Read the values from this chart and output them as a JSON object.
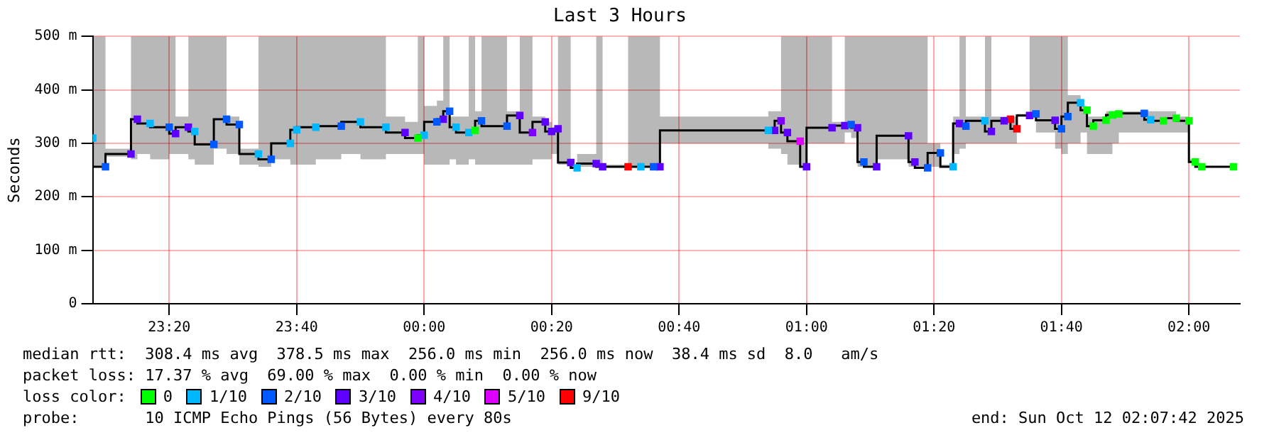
{
  "chart_data": {
    "type": "step",
    "title": "Last 3 Hours",
    "ylabel": "Seconds",
    "legend_title": "loss color:",
    "legend": "bottom",
    "grid": true,
    "xlim": [
      "2025-10-11T23:08",
      "2025-10-12T02:08"
    ],
    "xticks": [
      {
        "value": "2025-10-11T23:20",
        "label": "23:20"
      },
      {
        "value": "2025-10-11T23:40",
        "label": "23:40"
      },
      {
        "value": "2025-10-12T00:00",
        "label": "00:00"
      },
      {
        "value": "2025-10-12T00:20",
        "label": "00:20"
      },
      {
        "value": "2025-10-12T00:40",
        "label": "00:40"
      },
      {
        "value": "2025-10-12T01:00",
        "label": "01:00"
      },
      {
        "value": "2025-10-12T01:20",
        "label": "01:20"
      },
      {
        "value": "2025-10-12T01:40",
        "label": "01:40"
      },
      {
        "value": "2025-10-12T02:00",
        "label": "02:00"
      }
    ],
    "ylim": [
      0,
      500
    ],
    "yticks": [
      0,
      {
        "value": 100,
        "label": "100 m"
      },
      {
        "value": 200,
        "label": "200 m"
      },
      {
        "value": 300,
        "label": "300 m"
      },
      {
        "value": 400,
        "label": "400 m"
      },
      {
        "value": 500,
        "label": "500 m"
      }
    ],
    "x": [
      "2025-10-11T23:08",
      "2025-10-11T23:10",
      "2025-10-11T23:14",
      "2025-10-11T23:15",
      "2025-10-11T23:17",
      "2025-10-11T23:20",
      "2025-10-11T23:21",
      "2025-10-11T23:23",
      "2025-10-11T23:24",
      "2025-10-11T23:27",
      "2025-10-11T23:29",
      "2025-10-11T23:31",
      "2025-10-11T23:34",
      "2025-10-11T23:36",
      "2025-10-11T23:39",
      "2025-10-11T23:40",
      "2025-10-11T23:43",
      "2025-10-11T23:47",
      "2025-10-11T23:50",
      "2025-10-11T23:54",
      "2025-10-11T23:57",
      "2025-10-11T23:59",
      "2025-10-12T00:00",
      "2025-10-12T00:02",
      "2025-10-12T00:03",
      "2025-10-12T00:04",
      "2025-10-12T00:05",
      "2025-10-12T00:07",
      "2025-10-12T00:08",
      "2025-10-12T00:09",
      "2025-10-12T00:13",
      "2025-10-12T00:15",
      "2025-10-12T00:17",
      "2025-10-12T00:19",
      "2025-10-12T00:20",
      "2025-10-12T00:21",
      "2025-10-12T00:23",
      "2025-10-12T00:24",
      "2025-10-12T00:27",
      "2025-10-12T00:28",
      "2025-10-12T00:32",
      "2025-10-12T00:34",
      "2025-10-12T00:36",
      "2025-10-12T00:37",
      "2025-10-12T00:54",
      "2025-10-12T00:55",
      "2025-10-12T00:56",
      "2025-10-12T00:57",
      "2025-10-12T00:59",
      "2025-10-12T01:00",
      "2025-10-12T01:04",
      "2025-10-12T01:06",
      "2025-10-12T01:07",
      "2025-10-12T01:08",
      "2025-10-12T01:09",
      "2025-10-12T01:11",
      "2025-10-12T01:16",
      "2025-10-12T01:17",
      "2025-10-12T01:19",
      "2025-10-12T01:21",
      "2025-10-12T01:23",
      "2025-10-12T01:24",
      "2025-10-12T01:25",
      "2025-10-12T01:28",
      "2025-10-12T01:29",
      "2025-10-12T01:31",
      "2025-10-12T01:32",
      "2025-10-12T01:33",
      "2025-10-12T01:35",
      "2025-10-12T01:36",
      "2025-10-12T01:39",
      "2025-10-12T01:40",
      "2025-10-12T01:41",
      "2025-10-12T01:43",
      "2025-10-12T01:44",
      "2025-10-12T01:45",
      "2025-10-12T01:47",
      "2025-10-12T01:48",
      "2025-10-12T01:49",
      "2025-10-12T01:53",
      "2025-10-12T01:54",
      "2025-10-12T01:56",
      "2025-10-12T01:58",
      "2025-10-12T02:00",
      "2025-10-12T02:01",
      "2025-10-12T02:02",
      "2025-10-12T02:07"
    ],
    "series": [
      {
        "color": "#000000",
        "values": [
          310,
          256,
          280,
          345,
          337,
          330,
          318,
          330,
          322,
          298,
          345,
          335,
          280,
          270,
          300,
          325,
          330,
          332,
          340,
          330,
          320,
          310,
          315,
          340,
          345,
          360,
          330,
          320,
          324,
          342,
          332,
          352,
          320,
          340,
          322,
          327,
          264,
          254,
          262,
          256,
          256,
          256,
          256,
          256,
          324,
          324,
          342,
          320,
          304,
          256,
          329,
          333,
          335,
          329,
          265,
          256,
          314,
          265,
          254,
          282,
          256,
          337,
          332,
          342,
          322,
          342,
          345,
          327,
          352,
          355,
          343,
          327,
          350,
          376,
          362,
          332,
          343,
          353,
          355,
          356,
          344,
          342,
          347,
          342,
          265,
          256,
          256
        ],
        "lower": [
          280,
          256,
          275,
          270,
          280,
          270,
          280,
          280,
          270,
          260,
          290,
          280,
          260,
          256,
          270,
          260,
          260,
          270,
          280,
          270,
          280,
          280,
          280,
          260,
          260,
          260,
          270,
          260,
          270,
          260,
          260,
          260,
          260,
          270,
          270,
          280,
          260,
          254,
          256,
          256,
          256,
          256,
          256,
          256,
          300,
          290,
          290,
          280,
          260,
          256,
          300,
          300,
          320,
          310,
          256,
          256,
          270,
          256,
          254,
          256,
          256,
          280,
          290,
          300,
          300,
          300,
          300,
          300,
          350,
          350,
          320,
          290,
          280,
          300,
          320,
          280,
          280,
          280,
          300,
          320,
          320,
          320,
          320,
          320,
          265,
          256,
          256
        ],
        "upper": [
          500,
          500,
          290,
          500,
          500,
          500,
          500,
          350,
          500,
          500,
          500,
          350,
          290,
          500,
          500,
          500,
          500,
          500,
          500,
          500,
          350,
          340,
          500,
          370,
          380,
          500,
          350,
          350,
          500,
          360,
          500,
          360,
          500,
          350,
          340,
          330,
          500,
          260,
          280,
          500,
          260,
          500,
          500,
          500,
          350,
          360,
          360,
          500,
          500,
          500,
          500,
          340,
          500,
          500,
          500,
          500,
          500,
          500,
          500,
          300,
          260,
          350,
          500,
          350,
          500,
          350,
          350,
          350,
          355,
          500,
          500,
          500,
          500,
          390,
          370,
          350,
          350,
          360,
          360,
          360,
          360,
          360,
          360,
          350,
          270,
          260,
          256
        ]
      },
      {
        "type": "scatter",
        "name": "0",
        "color": "#00ff00",
        "x": [
          "2025-10-11T23:59",
          "2025-10-12T00:08",
          "2025-10-12T01:44",
          "2025-10-12T01:45",
          "2025-10-12T01:47",
          "2025-10-12T01:48",
          "2025-10-12T01:49",
          "2025-10-12T01:56",
          "2025-10-12T01:58",
          "2025-10-12T02:00",
          "2025-10-12T02:01",
          "2025-10-12T02:02",
          "2025-10-12T02:07"
        ],
        "values": [
          310,
          324,
          362,
          332,
          343,
          353,
          355,
          342,
          347,
          342,
          265,
          256,
          256
        ]
      },
      {
        "type": "scatter",
        "name": "1/10",
        "color": "#00b8ff",
        "x": [
          "2025-10-11T23:08",
          "2025-10-11T23:17",
          "2025-10-11T23:24",
          "2025-10-11T23:34",
          "2025-10-11T23:39",
          "2025-10-11T23:40",
          "2025-10-11T23:43",
          "2025-10-11T23:50",
          "2025-10-11T23:54",
          "2025-10-12T00:00",
          "2025-10-12T00:05",
          "2025-10-12T00:07",
          "2025-10-12T00:24",
          "2025-10-12T00:34",
          "2025-10-12T00:54",
          "2025-10-12T01:23",
          "2025-10-12T01:28",
          "2025-10-12T01:43",
          "2025-10-12T01:54"
        ],
        "values": [
          310,
          337,
          322,
          280,
          300,
          325,
          330,
          340,
          330,
          315,
          330,
          320,
          254,
          256,
          324,
          256,
          342,
          376,
          344
        ]
      },
      {
        "type": "scatter",
        "name": "2/10",
        "color": "#0059ff",
        "x": [
          "2025-10-11T23:10",
          "2025-10-11T23:20",
          "2025-10-11T23:27",
          "2025-10-11T23:29",
          "2025-10-11T23:31",
          "2025-10-11T23:36",
          "2025-10-11T23:47",
          "2025-10-12T00:02",
          "2025-10-12T00:04",
          "2025-10-12T00:09",
          "2025-10-12T00:13",
          "2025-10-12T00:36",
          "2025-10-12T01:07",
          "2025-10-12T01:09",
          "2025-10-12T01:19",
          "2025-10-12T01:21",
          "2025-10-12T01:25",
          "2025-10-12T01:36",
          "2025-10-12T01:40",
          "2025-10-12T01:41",
          "2025-10-12T01:53"
        ],
        "values": [
          256,
          330,
          298,
          345,
          335,
          270,
          332,
          340,
          360,
          342,
          332,
          256,
          335,
          265,
          254,
          282,
          332,
          355,
          327,
          350,
          356
        ]
      },
      {
        "type": "scatter",
        "name": "3/10",
        "color": "#5e00ff",
        "x": [
          "2025-10-11T23:14",
          "2025-10-11T23:15",
          "2025-10-11T23:21",
          "2025-10-11T23:23",
          "2025-10-11T23:57",
          "2025-10-12T00:03",
          "2025-10-12T00:15",
          "2025-10-12T00:19",
          "2025-10-12T00:20",
          "2025-10-12T00:21",
          "2025-10-12T00:23",
          "2025-10-12T00:27",
          "2025-10-12T00:28",
          "2025-10-12T00:37",
          "2025-10-12T00:55",
          "2025-10-12T00:57",
          "2025-10-12T01:00",
          "2025-10-12T01:04",
          "2025-10-12T01:06",
          "2025-10-12T01:08",
          "2025-10-12T01:11",
          "2025-10-12T01:16",
          "2025-10-12T01:17",
          "2025-10-12T01:24",
          "2025-10-12T01:29",
          "2025-10-12T01:31",
          "2025-10-12T01:35",
          "2025-10-12T01:39"
        ],
        "values": [
          280,
          345,
          318,
          330,
          320,
          345,
          352,
          340,
          322,
          327,
          264,
          262,
          256,
          256,
          324,
          320,
          256,
          329,
          333,
          329,
          256,
          314,
          265,
          337,
          322,
          342,
          352,
          343
        ]
      },
      {
        "type": "scatter",
        "name": "4/10",
        "color": "#7e00ff",
        "x": [
          "2025-10-12T00:17",
          "2025-10-12T00:56"
        ],
        "values": [
          320,
          342
        ]
      },
      {
        "type": "scatter",
        "name": "5/10",
        "color": "#dd00ff",
        "x": [
          "2025-10-12T00:59"
        ],
        "values": [
          304
        ]
      },
      {
        "type": "scatter",
        "name": "9/10",
        "color": "#ff0000",
        "x": [
          "2025-10-12T00:32",
          "2025-10-12T01:32",
          "2025-10-12T01:33"
        ],
        "values": [
          256,
          345,
          327
        ]
      }
    ],
    "annotations": [
      "median rtt:  308.4 ms avg  378.5 ms max  256.0 ms min  256.0 ms now  38.4 ms sd  8.0   am/s",
      "packet loss: 17.37 % avg  69.00 % max  0.00 % min  0.00 % now",
      "probe:       10 ICMP Echo Pings (56 Bytes) every 80s",
      "end: Sun Oct 12 02:07:42 2025"
    ]
  }
}
